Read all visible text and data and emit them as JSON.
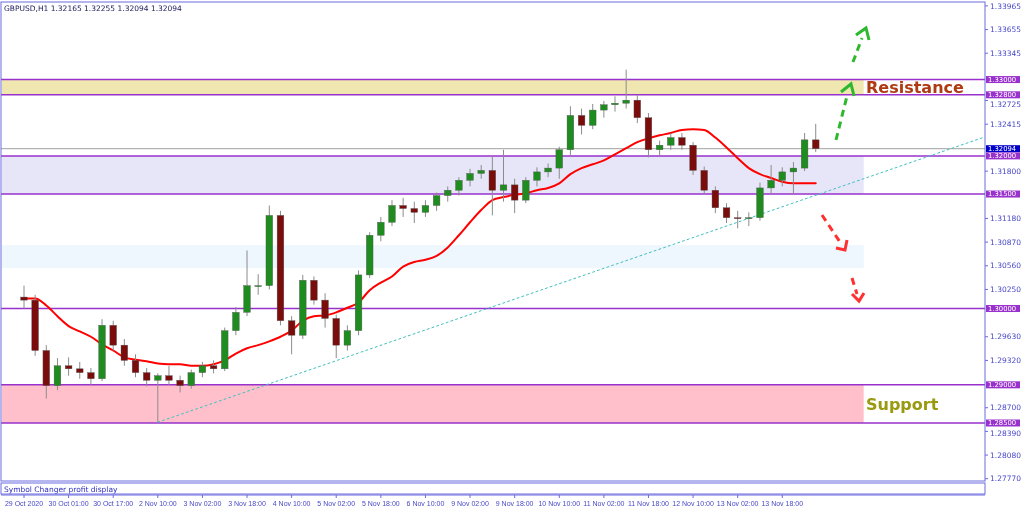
{
  "chart_data": {
    "type": "candlestick",
    "title": "GBPUSD,H1  1.32165 1.32255 1.32094 1.32094",
    "annotations": [
      "Symbol Changer profit display"
    ],
    "categories": [
      "29 Oct 2020",
      null,
      null,
      null,
      "30 Oct 01:00",
      null,
      null,
      null,
      "30 Oct 17:00",
      null,
      null,
      null,
      "2 Nov 10:00",
      null,
      null,
      null,
      "3 Nov 02:00",
      null,
      null,
      null,
      "3 Nov 18:00",
      null,
      null,
      null,
      "4 Nov 10:00",
      null,
      null,
      null,
      "5 Nov 02:00",
      null,
      null,
      null,
      "5 Nov 18:00",
      null,
      null,
      null,
      "6 Nov 10:00",
      null,
      null,
      null,
      "9 Nov 02:00",
      null,
      null,
      null,
      "9 Nov 18:00",
      null,
      null,
      null,
      "10 Nov 10:00",
      null,
      null,
      null,
      "11 Nov 02:00",
      null,
      null,
      null,
      "11 Nov 18:00",
      null,
      null,
      null,
      "12 Nov 10:00",
      null,
      null,
      null,
      "13 Nov 02:00",
      null,
      null,
      null,
      "13 Nov 18:00",
      null,
      null,
      null,
      null,
      null,
      null,
      null,
      null,
      null,
      null,
      null,
      null,
      null,
      null,
      null,
      null,
      null,
      null
    ],
    "ohlc": [
      [
        1.3015,
        1.303,
        1.3,
        1.3011
      ],
      [
        1.3011,
        1.3018,
        1.2938,
        1.2945
      ],
      [
        1.2945,
        1.2952,
        1.2882,
        1.2899
      ],
      [
        1.2899,
        1.2935,
        1.2893,
        1.2925
      ],
      [
        1.2925,
        1.2936,
        1.2912,
        1.2921
      ],
      [
        1.2921,
        1.293,
        1.2908,
        1.2916
      ],
      [
        1.2916,
        1.2922,
        1.29,
        1.2908
      ],
      [
        1.2908,
        1.2986,
        1.2905,
        1.2978
      ],
      [
        1.2978,
        1.2984,
        1.2945,
        1.2952
      ],
      [
        1.2952,
        1.296,
        1.2925,
        1.2932
      ],
      [
        1.2932,
        1.294,
        1.291,
        1.2916
      ],
      [
        1.2916,
        1.2922,
        1.2898,
        1.2906
      ],
      [
        1.2906,
        1.2915,
        1.2851,
        1.2912
      ],
      [
        1.2912,
        1.2925,
        1.29,
        1.2906
      ],
      [
        1.2906,
        1.2912,
        1.289,
        1.2899
      ],
      [
        1.2899,
        1.292,
        1.2895,
        1.2916
      ],
      [
        1.2916,
        1.293,
        1.291,
        1.2925
      ],
      [
        1.2925,
        1.2932,
        1.2915,
        1.2921
      ],
      [
        1.2921,
        1.2975,
        1.2918,
        1.2971
      ],
      [
        1.2971,
        1.3002,
        1.2965,
        1.2995
      ],
      [
        1.2995,
        1.3076,
        1.299,
        1.303
      ],
      [
        1.303,
        1.3045,
        1.3018,
        1.303
      ],
      [
        1.303,
        1.3135,
        1.3025,
        1.3122
      ],
      [
        1.3122,
        1.3128,
        1.2978,
        1.2984
      ],
      [
        1.2984,
        1.299,
        1.294,
        1.2965
      ],
      [
        1.2965,
        1.3044,
        1.296,
        1.3037
      ],
      [
        1.3037,
        1.3042,
        1.3005,
        1.3011
      ],
      [
        1.3011,
        1.302,
        1.2975,
        1.2987
      ],
      [
        1.2987,
        1.2992,
        1.2935,
        1.2952
      ],
      [
        1.2952,
        1.2978,
        1.2945,
        1.2971
      ],
      [
        1.2971,
        1.305,
        1.2965,
        1.3044
      ],
      [
        1.3044,
        1.31,
        1.304,
        1.3096
      ],
      [
        1.3096,
        1.312,
        1.3088,
        1.3113
      ],
      [
        1.3113,
        1.3142,
        1.3108,
        1.3135
      ],
      [
        1.3135,
        1.3145,
        1.312,
        1.3131
      ],
      [
        1.3131,
        1.314,
        1.3112,
        1.3126
      ],
      [
        1.3126,
        1.3142,
        1.312,
        1.3135
      ],
      [
        1.3135,
        1.3152,
        1.3128,
        1.3148
      ],
      [
        1.3148,
        1.316,
        1.314,
        1.3155
      ],
      [
        1.3155,
        1.3172,
        1.3148,
        1.3168
      ],
      [
        1.3168,
        1.3183,
        1.316,
        1.3177
      ],
      [
        1.3177,
        1.3188,
        1.317,
        1.3181
      ],
      [
        1.3181,
        1.32,
        1.3122,
        1.3155
      ],
      [
        1.3155,
        1.3208,
        1.314,
        1.3162
      ],
      [
        1.3162,
        1.317,
        1.3125,
        1.3142
      ],
      [
        1.3142,
        1.3172,
        1.3138,
        1.3168
      ],
      [
        1.3168,
        1.3185,
        1.316,
        1.3179
      ],
      [
        1.3179,
        1.319,
        1.3172,
        1.3184
      ],
      [
        1.3184,
        1.3212,
        1.317,
        1.3208
      ],
      [
        1.3208,
        1.3265,
        1.32,
        1.3253
      ],
      [
        1.3253,
        1.3262,
        1.3228,
        1.324
      ],
      [
        1.324,
        1.3268,
        1.3235,
        1.326
      ],
      [
        1.326,
        1.3272,
        1.325,
        1.3267
      ],
      [
        1.3267,
        1.3278,
        1.3258,
        1.3269
      ],
      [
        1.3269,
        1.3313,
        1.3262,
        1.3273
      ],
      [
        1.3273,
        1.328,
        1.3243,
        1.325
      ],
      [
        1.325,
        1.3256,
        1.3198,
        1.3208
      ],
      [
        1.3208,
        1.322,
        1.32,
        1.3214
      ],
      [
        1.3214,
        1.323,
        1.3208,
        1.3224
      ],
      [
        1.3224,
        1.323,
        1.3208,
        1.3214
      ],
      [
        1.3214,
        1.3218,
        1.3175,
        1.3181
      ],
      [
        1.3181,
        1.3186,
        1.315,
        1.3155
      ],
      [
        1.3155,
        1.316,
        1.3125,
        1.3132
      ],
      [
        1.3132,
        1.3138,
        1.3112,
        1.3119
      ],
      [
        1.3119,
        1.3128,
        1.3105,
        1.3118
      ],
      [
        1.3118,
        1.3126,
        1.3108,
        1.3119
      ],
      [
        1.3119,
        1.3165,
        1.3115,
        1.3158
      ],
      [
        1.3158,
        1.3188,
        1.315,
        1.3168
      ],
      [
        1.3168,
        1.3185,
        1.316,
        1.3179
      ],
      [
        1.3179,
        1.3192,
        1.315,
        1.3184
      ],
      [
        1.3184,
        1.323,
        1.318,
        1.3221
      ],
      [
        1.3221,
        1.3242,
        1.3205,
        1.32094
      ],
      null,
      null,
      null,
      null,
      null,
      null,
      null,
      null,
      null,
      null,
      null,
      null,
      null,
      null,
      null
    ],
    "series": [
      {
        "type": "line",
        "color": "#ff0000",
        "values": [
          1.3013,
          1.3013,
          1.3004,
          1.299,
          1.2977,
          1.297,
          1.2963,
          1.2953,
          1.2945,
          1.2936,
          1.2933,
          1.2931,
          1.2928,
          1.2927,
          1.2927,
          1.2925,
          1.2925,
          1.2927,
          1.2932,
          1.2941,
          1.2948,
          1.2952,
          1.2957,
          1.2963,
          1.2971,
          1.2984,
          1.299,
          1.2991,
          1.2995,
          1.3001,
          1.3008,
          1.3024,
          1.3034,
          1.3042,
          1.3055,
          1.3061,
          1.3064,
          1.3069,
          1.308,
          1.3096,
          1.3113,
          1.3129,
          1.3142,
          1.3146,
          1.3149,
          1.3151,
          1.3155,
          1.3158,
          1.3164,
          1.3176,
          1.3184,
          1.3189,
          1.3194,
          1.3202,
          1.321,
          1.3218,
          1.3223,
          1.3227,
          1.323,
          1.3234,
          1.3235,
          1.3234,
          1.3224,
          1.3211,
          1.3197,
          1.3184,
          1.3176,
          1.3171,
          1.3166,
          1.3164,
          1.3164,
          1.3164,
          null,
          null,
          null,
          null,
          null,
          null,
          null,
          null,
          null,
          null,
          null,
          null,
          null,
          null,
          null
        ]
      },
      {
        "type": "line",
        "color": "#40c0c0",
        "line_style": "dotted",
        "values": [
          null,
          null,
          null,
          null,
          null,
          null,
          null,
          null,
          null,
          null,
          null,
          null,
          1.2851,
          null,
          null,
          null,
          null,
          null,
          null,
          null,
          null,
          null,
          null,
          null,
          null,
          null,
          null,
          null,
          null,
          null,
          null,
          null,
          null,
          null,
          null,
          null,
          null,
          null,
          null,
          null,
          null,
          null,
          null,
          null,
          null,
          null,
          null,
          null,
          null,
          null,
          null,
          null,
          null,
          null,
          null,
          null,
          null,
          null,
          null,
          null,
          null,
          null,
          null,
          null,
          null,
          null,
          null,
          null,
          null,
          null,
          null,
          null,
          null,
          null,
          null,
          null,
          null,
          null,
          null,
          null,
          null,
          null,
          null,
          null,
          null,
          null,
          1.3224
        ]
      }
    ],
    "ylim": [
      1.2774,
      1.3399
    ],
    "yticks": [
      1.33965,
      1.33655,
      1.33345,
      1.32725,
      1.32415,
      {
        "value": 1.318,
        "label": "1.31800"
      },
      {
        "value": 1.3118,
        "label": "1.31180"
      },
      {
        "value": 1.3087,
        "label": "1.30870"
      },
      {
        "value": 1.3056,
        "label": "1.30560"
      },
      {
        "value": 1.3025,
        "label": "1.30250"
      },
      {
        "value": 1.2963,
        "label": "1.29630"
      },
      {
        "value": 1.2932,
        "label": "1.29320"
      },
      {
        "value": 1.287,
        "label": "1.28700"
      },
      {
        "value": 1.2839,
        "label": "1.28390"
      },
      {
        "value": 1.2808,
        "label": "1.28080"
      },
      {
        "value": 1.2777,
        "label": "1.27770"
      }
    ],
    "bands": [
      {
        "axis": "y",
        "from": 1.328,
        "to": 1.33,
        "label": "Resistance",
        "color": "#f0e6b0"
      },
      {
        "axis": "y",
        "from": 1.315,
        "to": 1.32,
        "color": "#e6e6f8"
      },
      {
        "axis": "y",
        "from": 1.3053,
        "to": 1.3083,
        "color": "#eef6fe"
      },
      {
        "axis": "y",
        "from": 1.285,
        "to": 1.29,
        "label": "Support",
        "color": "#ffc0cb"
      }
    ],
    "ref_lines": [
      {
        "axis": "y",
        "value": 1.33,
        "label": "1.33000",
        "color": "#9932cc"
      },
      {
        "axis": "y",
        "value": 1.328,
        "label": "1.32800",
        "color": "#9932cc"
      },
      {
        "axis": "y",
        "value": 1.32094,
        "label": "1.32094",
        "color": "#a0a0a0"
      },
      {
        "axis": "y",
        "value": 1.32,
        "label": "1.32000",
        "color": "#9932cc"
      },
      {
        "axis": "y",
        "value": 1.315,
        "label": "1.31500",
        "color": "#9932cc"
      },
      {
        "axis": "y",
        "value": 1.3,
        "label": "1.30000",
        "color": "#9932cc"
      },
      {
        "axis": "y",
        "value": 1.29,
        "label": "1.29000",
        "color": "#9932cc"
      },
      {
        "axis": "y",
        "value": 1.285,
        "label": "1.28500",
        "color": "#9932cc"
      }
    ]
  }
}
